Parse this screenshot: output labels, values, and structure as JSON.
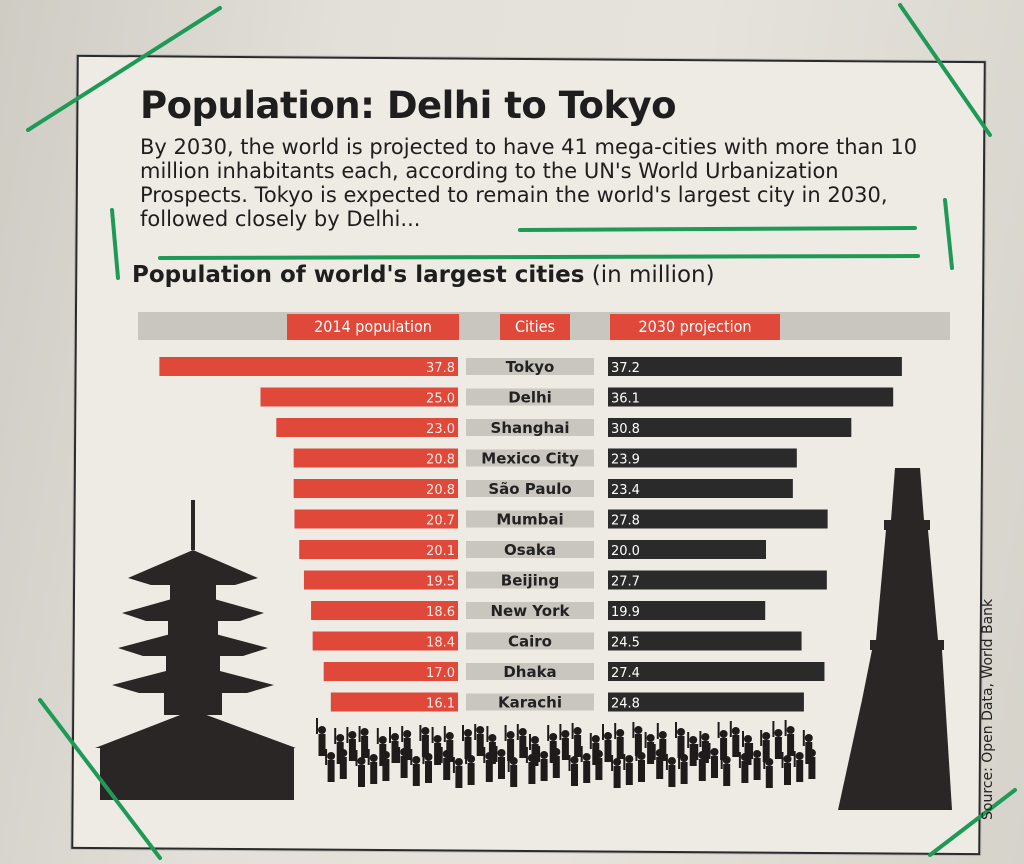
{
  "headline": "Population: Delhi to Tokyo",
  "intro": "By 2030, the world is projected to have 41 mega-cities with more than 10 million inhabitants each, according to the UN's World Urbanization Prospects. Tokyo is expected to remain the world's largest city in 2030, followed closely by Delhi...",
  "subhead": {
    "bold": "Population of world's largest cities",
    "unit": "(in million)"
  },
  "source": "Source: Open Data, World Bank",
  "colors": {
    "pop2014": "#e0483a",
    "proj2030": "#2a2a2a",
    "city_label_bg": "#c9c6c0",
    "pen": "#1f9a56"
  },
  "chart_data": {
    "type": "bar",
    "title": "Population of world's largest cities",
    "unit": "(in million)",
    "column_headers": {
      "left": "2014 population",
      "center": "Cities",
      "right": "2030 projection"
    },
    "categories": [
      "Tokyo",
      "Delhi",
      "Shanghai",
      "Mexico City",
      "São Paulo",
      "Mumbai",
      "Osaka",
      "Beijing",
      "New York",
      "Cairo",
      "Dhaka",
      "Karachi"
    ],
    "series": [
      {
        "name": "2014 population",
        "values": [
          37.8,
          25.0,
          23.0,
          20.8,
          20.8,
          20.7,
          20.1,
          19.5,
          18.6,
          18.4,
          17.0,
          16.1
        ],
        "labels": [
          "37.8",
          "25.0",
          "23.0",
          "20.8",
          "20.8",
          "20.7",
          "20.1",
          "19.5",
          "18.6",
          "18.4",
          "17.0",
          "16.1"
        ]
      },
      {
        "name": "2030 projection",
        "values": [
          37.2,
          36.1,
          30.8,
          23.9,
          23.4,
          27.8,
          20.0,
          27.7,
          19.9,
          24.5,
          27.4,
          24.8
        ],
        "labels": [
          "37.2",
          "36.1",
          "30.8",
          "23.9",
          "23.4",
          "27.8",
          "20.0",
          "27.7",
          "19.9",
          "24.5",
          "27.4",
          "24.8"
        ]
      }
    ]
  }
}
